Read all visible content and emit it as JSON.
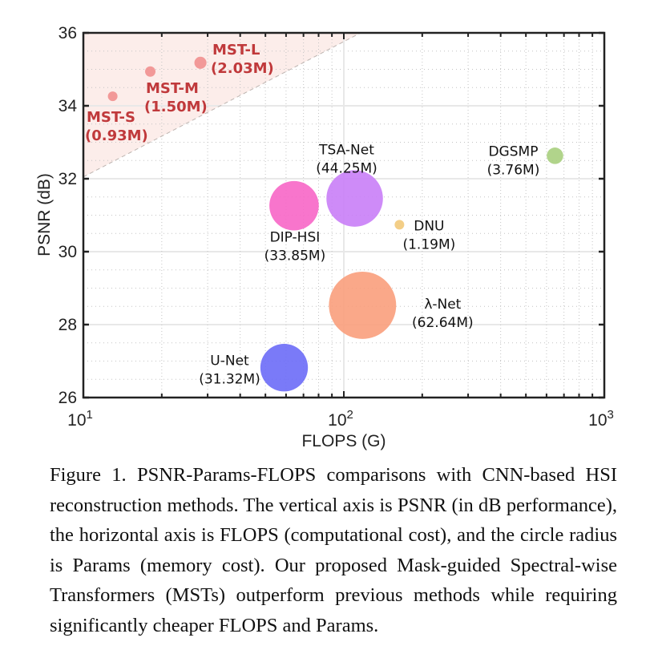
{
  "chart_data": {
    "type": "scatter",
    "subtype": "bubble",
    "xlabel": "FLOPS (G)",
    "ylabel": "PSNR (dB)",
    "xscale": "log",
    "xlim": [
      10,
      1000
    ],
    "ylim": [
      26,
      36
    ],
    "xticks": [
      {
        "value": 10,
        "base": "10",
        "exp": "1"
      },
      {
        "value": 100,
        "base": "10",
        "exp": "2"
      },
      {
        "value": 1000,
        "base": "10",
        "exp": "3"
      }
    ],
    "yticks": [
      26,
      28,
      30,
      32,
      34,
      36
    ],
    "yminor_step": 0.5,
    "grid": true,
    "size_encoding": "Params (M)",
    "highlight_region": {
      "description": "shaded region above dashed line",
      "line_from": [
        10,
        32.05
      ],
      "line_to": [
        116,
        36
      ],
      "color": "#fbe4de"
    },
    "points": [
      {
        "name": "MST-S",
        "params": "0.93M",
        "flops": 12.96,
        "psnr": 34.26,
        "color": "#f08a8a",
        "highlight": true
      },
      {
        "name": "MST-M",
        "params": "1.50M",
        "flops": 18.07,
        "psnr": 34.94,
        "color": "#f08a8a",
        "highlight": true
      },
      {
        "name": "MST-L",
        "params": "2.03M",
        "flops": 28.15,
        "psnr": 35.18,
        "color": "#f08a8a",
        "highlight": true
      },
      {
        "name": "DGSMP",
        "params": "3.76M",
        "flops": 646.65,
        "psnr": 32.63,
        "color": "#a9cf7e",
        "highlight": false
      },
      {
        "name": "TSA-Net",
        "params": "44.25M",
        "flops": 110.06,
        "psnr": 31.46,
        "color": "#c97ef7",
        "highlight": false
      },
      {
        "name": "DIP-HSI",
        "params": "33.85M",
        "flops": 64.42,
        "psnr": 31.26,
        "color": "#f766c6",
        "highlight": false
      },
      {
        "name": "DNU",
        "params": "1.19M",
        "flops": 163.48,
        "psnr": 30.74,
        "color": "#f2c97a",
        "highlight": false
      },
      {
        "name": "λ-Net",
        "params": "62.64M",
        "flops": 117.98,
        "psnr": 28.53,
        "color": "#f99f7c",
        "highlight": false
      },
      {
        "name": "U-Net",
        "params": "31.32M",
        "flops": 58.99,
        "psnr": 26.82,
        "color": "#6b6bf7",
        "highlight": false
      }
    ]
  },
  "caption": "Figure 1.  PSNR-Params-FLOPS comparisons with CNN-based HSI reconstruction methods. The vertical axis is PSNR (in dB performance), the horizontal axis is FLOPS (computational cost), and the circle radius is Params (memory cost).  Our proposed Mask-guided Spectral-wise Transformers (MSTs) outperform previous methods while requiring significantly cheaper FLOPS and Params."
}
